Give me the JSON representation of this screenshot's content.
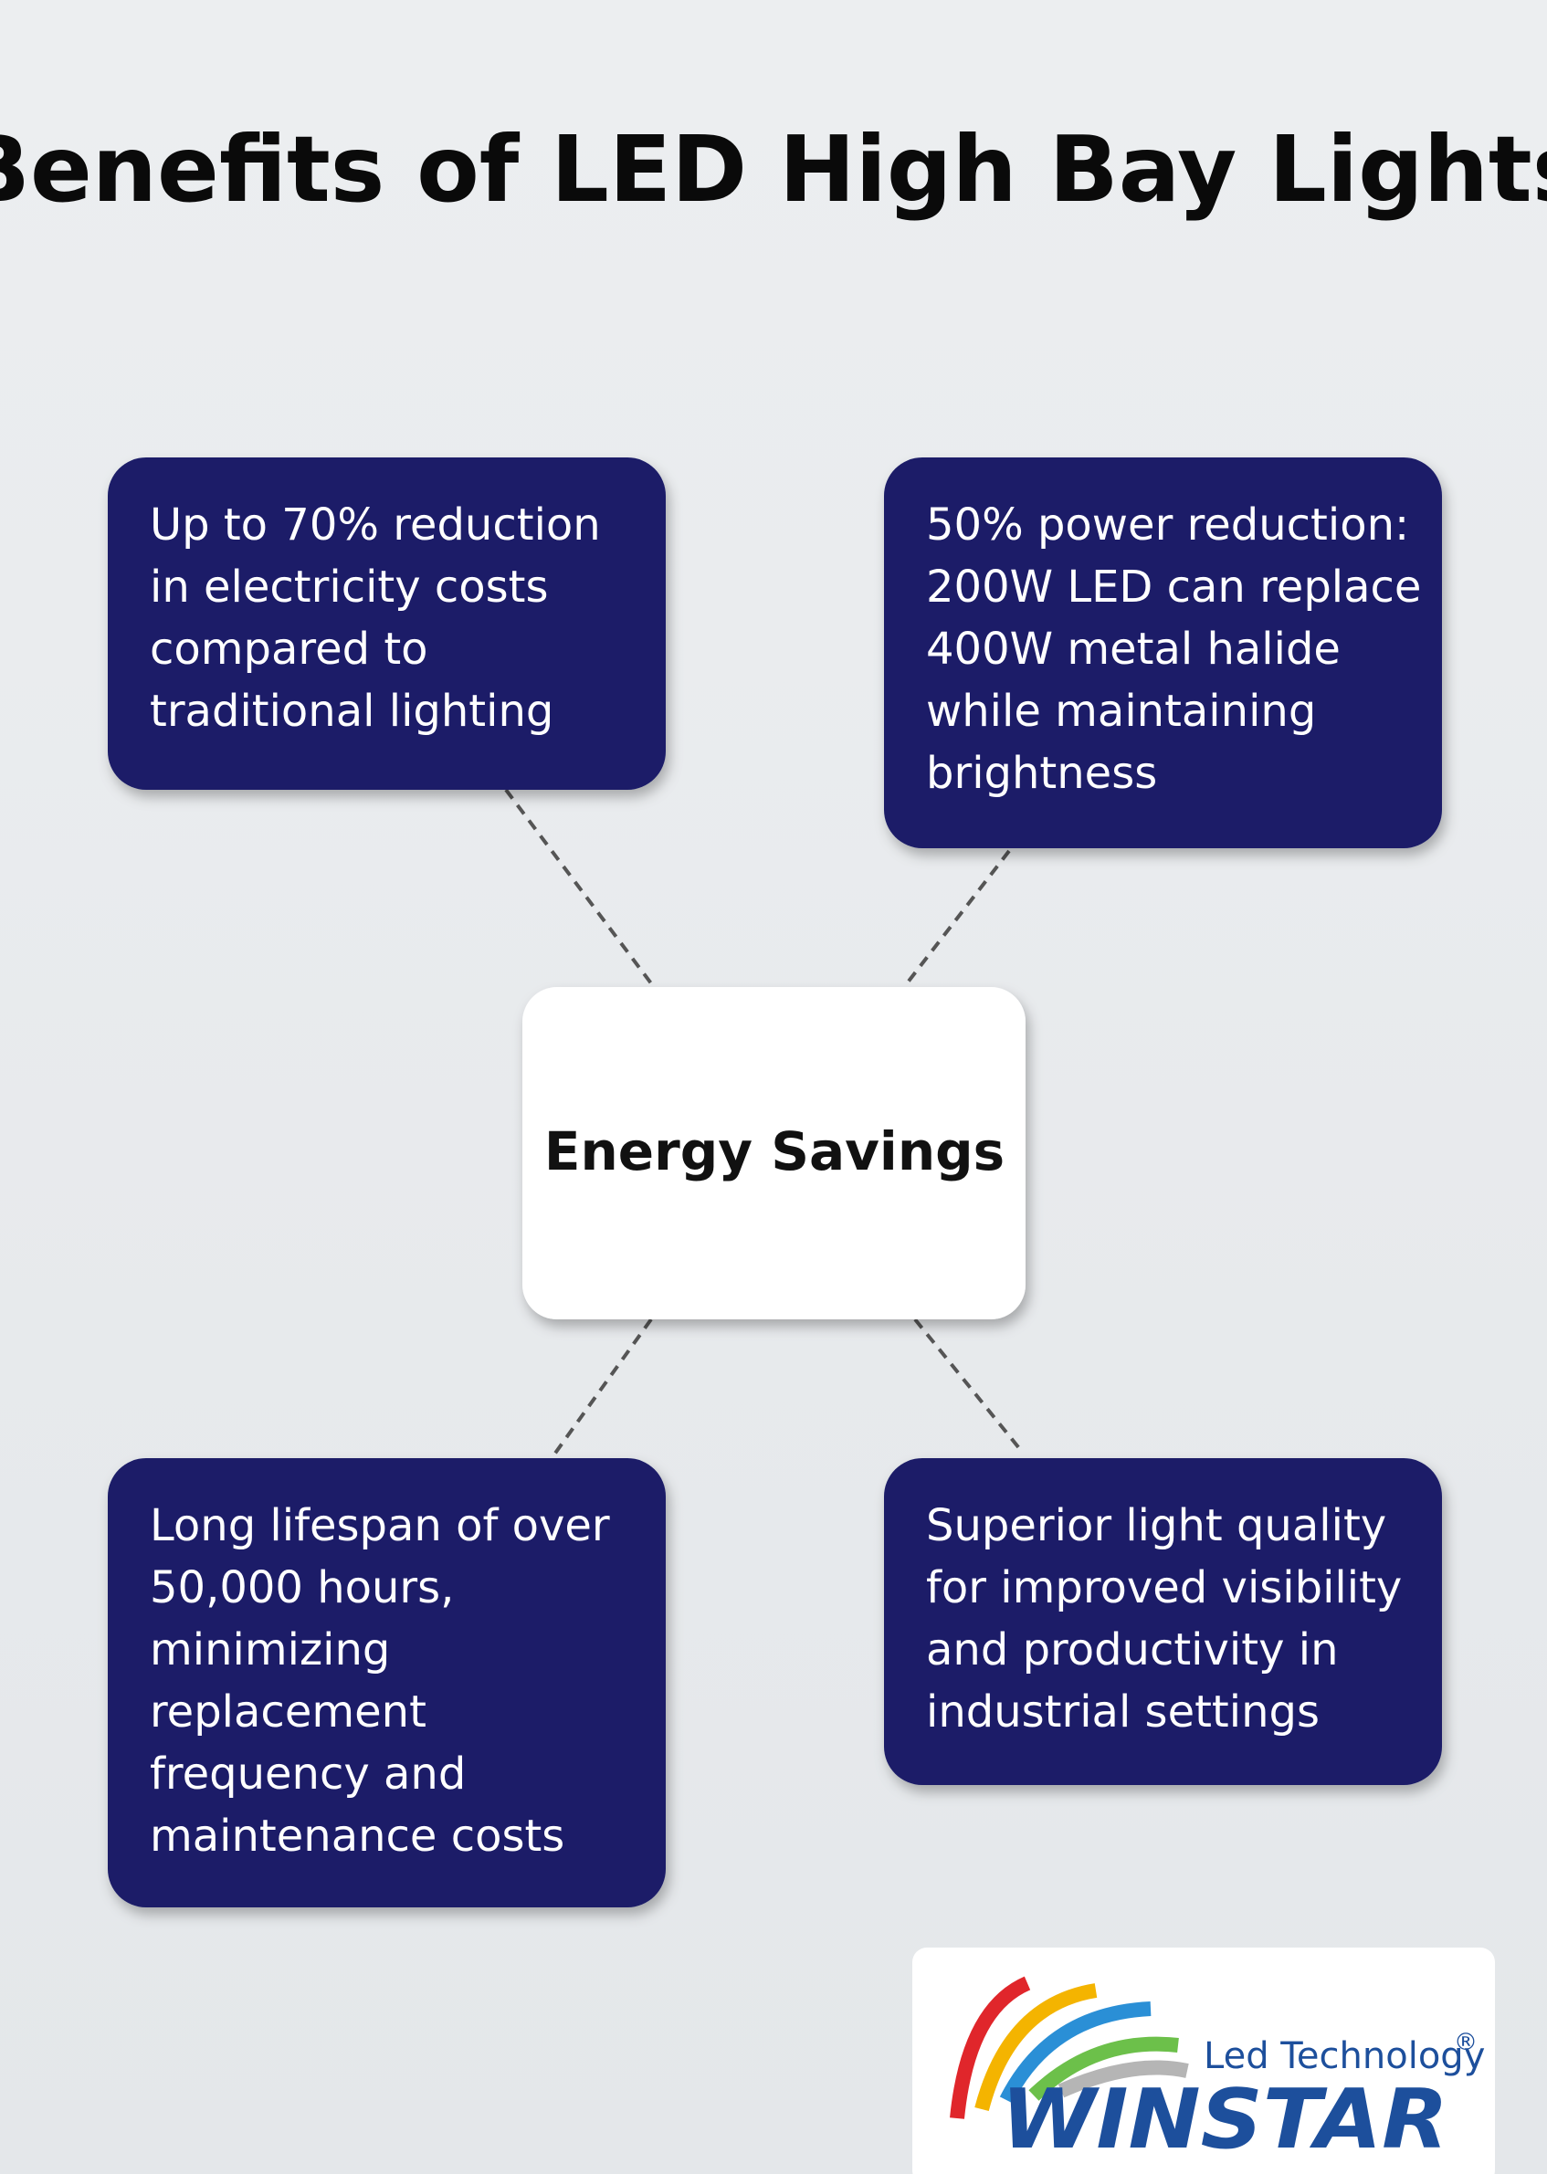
{
  "header": {
    "title": "Benefits of LED High Bay Lights"
  },
  "center": {
    "label": "Energy Savings"
  },
  "nodes": [
    {
      "lines": [
        "Up to 70% reduction",
        "in electricity costs",
        "compared to",
        "traditional lighting"
      ]
    },
    {
      "lines": [
        "50% power reduction:",
        "200W LED can replace",
        "400W metal halide",
        "while maintaining",
        "brightness"
      ]
    },
    {
      "lines": [
        "Long lifespan of over",
        "50,000 hours,",
        "minimizing",
        "replacement",
        "frequency and",
        "maintenance costs"
      ]
    },
    {
      "lines": [
        "Superior light quality",
        "for improved visibility",
        "and productivity in",
        "industrial settings"
      ]
    }
  ],
  "logo": {
    "tagline": "Led Technology",
    "mark": "®",
    "brand": "WINSTAR"
  }
}
